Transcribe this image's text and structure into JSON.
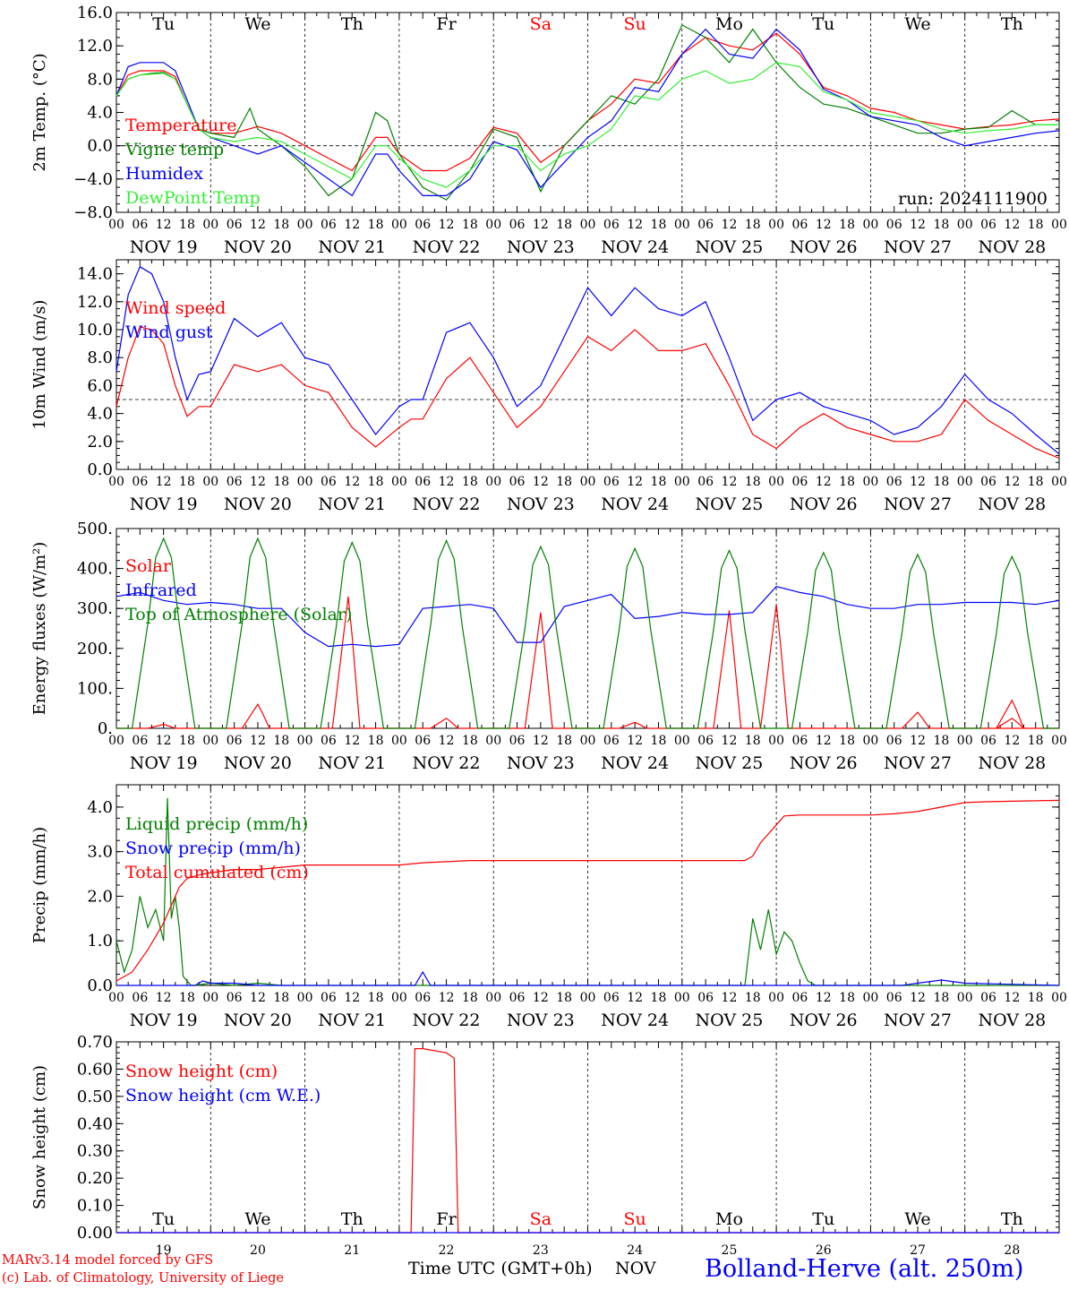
{
  "meta": {
    "run": "run: 2024111900",
    "footer_model": "MARv3.14 model forced by GFS",
    "footer_lab": "(c) Lab. of Climatology, University of Liege",
    "time_label": "Time UTC (GMT+0h)",
    "month_label": "NOV",
    "station": "Bolland-Herve (alt. 250m)"
  },
  "days": [
    "Tu",
    "We",
    "Th",
    "Fr",
    "Sa",
    "Su",
    "Mo",
    "Tu",
    "We",
    "Th"
  ],
  "weekend_days": [
    4,
    5
  ],
  "dates": [
    "NOV 19",
    "NOV 20",
    "NOV 21",
    "NOV 22",
    "NOV 23",
    "NOV 24",
    "NOV 25",
    "NOV 26",
    "NOV 27",
    "NOV 28"
  ],
  "day_numbers": [
    "19",
    "20",
    "21",
    "22",
    "23",
    "24",
    "25",
    "26",
    "27",
    "28"
  ],
  "hour_ticks": [
    "00",
    "06",
    "12",
    "18"
  ],
  "colors": {
    "red": "#ff0000",
    "green": "#008000",
    "blue": "#0000ff",
    "lightgreen": "#33ee33"
  },
  "chart_data": [
    {
      "type": "line",
      "ylabel": "2m Temp. (°C)",
      "ylim": [
        -8,
        16
      ],
      "yticks": [
        "16.0",
        "12.0",
        "8.0",
        "4.0",
        "0.0",
        "−4.0",
        "−8.0"
      ],
      "ref_line": 0,
      "x_unit": "hours since NOV 19 00 UTC",
      "series": [
        {
          "name": "Temperature",
          "color": "red",
          "x": [
            0,
            3,
            6,
            9,
            12,
            15,
            18,
            21,
            24,
            30,
            36,
            42,
            48,
            54,
            60,
            66,
            69,
            72,
            78,
            84,
            90,
            96,
            102,
            108,
            114,
            120,
            126,
            132,
            138,
            144,
            150,
            156,
            162,
            168,
            174,
            180,
            186,
            192,
            198,
            204,
            210,
            216,
            222,
            228,
            234,
            240
          ],
          "y": [
            6,
            8.5,
            9,
            9,
            9,
            8.3,
            5,
            2,
            1.5,
            1.5,
            2.3,
            1.5,
            0,
            -1.5,
            -3,
            1,
            1,
            -1,
            -3,
            -3,
            -1.5,
            2.2,
            1.5,
            -2,
            0,
            3,
            5,
            8,
            7.5,
            11,
            13,
            12,
            11.5,
            13.5,
            11,
            7,
            6,
            4.5,
            4,
            3,
            2.5,
            2,
            2.3,
            2.5,
            3,
            3.2
          ]
        },
        {
          "name": "Vigne temp",
          "color": "green",
          "x": [
            0,
            3,
            6,
            9,
            12,
            15,
            18,
            21,
            24,
            30,
            34,
            36,
            42,
            48,
            54,
            60,
            66,
            69,
            72,
            78,
            84,
            90,
            96,
            102,
            108,
            114,
            120,
            126,
            132,
            138,
            144,
            150,
            156,
            162,
            168,
            174,
            180,
            186,
            192,
            198,
            204,
            210,
            216,
            222,
            228,
            234,
            240
          ],
          "y": [
            6,
            8,
            8.5,
            8.7,
            8.8,
            8,
            5,
            2,
            1.5,
            1,
            4.5,
            2,
            0,
            -2.5,
            -6,
            -4,
            4,
            3,
            -1,
            -5,
            -6.5,
            -3,
            2,
            1,
            -5.5,
            0,
            3,
            6,
            5,
            8,
            14.5,
            13,
            10,
            14,
            10,
            7,
            5,
            4.5,
            3.5,
            2.5,
            1.5,
            1.5,
            2,
            2.2,
            4.2,
            2.5,
            2.5
          ]
        },
        {
          "name": "Humidex",
          "color": "blue",
          "x": [
            0,
            3,
            6,
            9,
            12,
            15,
            18,
            21,
            24,
            30,
            36,
            42,
            48,
            54,
            60,
            66,
            69,
            72,
            78,
            84,
            90,
            96,
            102,
            108,
            114,
            120,
            126,
            132,
            138,
            144,
            150,
            156,
            162,
            168,
            174,
            180,
            186,
            192,
            198,
            204,
            210,
            216,
            222,
            228,
            234,
            240
          ],
          "y": [
            6,
            9.5,
            10,
            10,
            10,
            9,
            5.5,
            2,
            1,
            0,
            -1,
            0,
            -2,
            -4,
            -6,
            -1,
            -1,
            -3,
            -6,
            -6,
            -4,
            0.5,
            -0.5,
            -5,
            -2,
            1,
            3,
            7,
            6.5,
            11,
            14,
            11,
            10.5,
            14,
            11.5,
            6.8,
            5.5,
            3.5,
            3,
            2.5,
            1,
            0,
            0.5,
            1,
            1.5,
            1.8
          ]
        },
        {
          "name": "DewPoint Temp",
          "color": "lightgreen",
          "x": [
            0,
            3,
            6,
            9,
            12,
            15,
            18,
            21,
            24,
            30,
            36,
            42,
            48,
            54,
            60,
            66,
            69,
            72,
            78,
            84,
            90,
            96,
            102,
            108,
            114,
            120,
            126,
            132,
            138,
            144,
            150,
            156,
            162,
            168,
            174,
            180,
            186,
            192,
            198,
            204,
            210,
            216,
            222,
            228,
            234,
            240
          ],
          "y": [
            6,
            8,
            8.5,
            8.6,
            8.7,
            8,
            5,
            2,
            1,
            0.5,
            1,
            0.5,
            -1,
            -2.5,
            -4,
            0,
            0,
            -1.5,
            -4,
            -5,
            -3,
            0,
            0,
            -3,
            -1,
            0,
            2,
            6,
            5.5,
            8,
            9,
            7.5,
            8,
            10,
            9.5,
            6.5,
            5.5,
            4,
            3.5,
            3,
            2,
            1.5,
            1.8,
            2,
            2.5,
            2.5
          ]
        }
      ]
    },
    {
      "type": "line",
      "ylabel": "10m Wind (m/s)",
      "ylim": [
        0,
        15
      ],
      "yticks": [
        "14.0",
        "12.0",
        "10.0",
        "8.0",
        "6.0",
        "4.0",
        "2.0",
        "0.0"
      ],
      "ref_line": 5,
      "x_unit": "hours since NOV 19 00 UTC",
      "series": [
        {
          "name": "Wind speed",
          "color": "red",
          "x": [
            0,
            3,
            6,
            9,
            12,
            15,
            18,
            21,
            24,
            30,
            36,
            42,
            48,
            54,
            60,
            66,
            72,
            75,
            78,
            84,
            90,
            96,
            102,
            108,
            114,
            120,
            126,
            132,
            138,
            144,
            150,
            156,
            162,
            168,
            174,
            180,
            186,
            192,
            198,
            204,
            210,
            216,
            222,
            228,
            234,
            240
          ],
          "y": [
            4.5,
            8,
            10.2,
            10,
            9,
            6,
            3.8,
            4.5,
            4.5,
            7.5,
            7,
            7.5,
            6,
            5.5,
            3,
            1.6,
            3,
            3.6,
            3.6,
            6.5,
            8,
            5.5,
            3,
            4.5,
            7,
            9.5,
            8.5,
            10,
            8.5,
            8.5,
            9,
            6,
            2.5,
            1.5,
            3,
            4,
            3,
            2.5,
            2,
            2,
            2.5,
            5,
            3.5,
            2.5,
            1.5,
            0.8
          ]
        },
        {
          "name": "Wind gust",
          "color": "blue",
          "x": [
            0,
            3,
            6,
            9,
            12,
            15,
            18,
            21,
            24,
            30,
            36,
            42,
            48,
            54,
            60,
            66,
            72,
            75,
            78,
            84,
            90,
            96,
            102,
            108,
            114,
            120,
            126,
            132,
            138,
            144,
            150,
            156,
            162,
            168,
            174,
            180,
            186,
            192,
            198,
            204,
            210,
            216,
            222,
            228,
            234,
            240
          ],
          "y": [
            7,
            12.5,
            14.5,
            14,
            12,
            8,
            5,
            6.8,
            7,
            10.8,
            9.5,
            10.5,
            8,
            7.5,
            5,
            2.5,
            4.5,
            5,
            5,
            9.8,
            10.5,
            8,
            4.5,
            6,
            9.5,
            13,
            11,
            13,
            11.5,
            11,
            12,
            8,
            3.5,
            5,
            5.5,
            4.5,
            4,
            3.5,
            2.5,
            3,
            4.5,
            6.8,
            5,
            4,
            2.5,
            1.1
          ]
        }
      ]
    },
    {
      "type": "line",
      "ylabel": "Energy fluxes (W/m²)",
      "ylim": [
        0,
        500
      ],
      "yticks": [
        "500.",
        "400.",
        "300.",
        "200.",
        "100.",
        "0."
      ],
      "x_unit": "hours since NOV 19 00 UTC",
      "series": [
        {
          "name": "Solar",
          "color": "red",
          "peaks": [
            10,
            60,
            330,
            25,
            290,
            15,
            295,
            310,
            40,
            25,
            70
          ],
          "peak_hours": [
            12,
            36,
            59,
            84,
            108,
            132,
            156,
            168,
            204,
            228,
            228
          ]
        },
        {
          "name": "Infrared",
          "color": "blue",
          "x": [
            0,
            6,
            12,
            18,
            24,
            30,
            36,
            42,
            48,
            54,
            60,
            66,
            72,
            78,
            84,
            90,
            96,
            102,
            108,
            114,
            120,
            126,
            132,
            138,
            144,
            150,
            156,
            162,
            168,
            174,
            180,
            186,
            192,
            198,
            204,
            210,
            216,
            222,
            228,
            234,
            240
          ],
          "y": [
            330,
            340,
            320,
            310,
            315,
            310,
            300,
            300,
            240,
            205,
            210,
            205,
            210,
            300,
            305,
            310,
            300,
            215,
            215,
            305,
            320,
            335,
            275,
            280,
            290,
            285,
            285,
            290,
            355,
            340,
            330,
            310,
            300,
            300,
            310,
            310,
            315,
            315,
            315,
            310,
            320
          ]
        },
        {
          "name": "Top of Atmosphere (Solar)",
          "color": "green",
          "peaks": [
            475,
            475,
            465,
            470,
            455,
            450,
            445,
            440,
            435,
            430
          ],
          "peak_hours": [
            12,
            36,
            60,
            84,
            108,
            132,
            156,
            180,
            204,
            228
          ]
        }
      ]
    },
    {
      "type": "line",
      "ylabel": "Precip (mm/h)",
      "ylim": [
        0,
        4.5
      ],
      "yticks": [
        "4.0",
        "3.0",
        "2.0",
        "1.0",
        "0.0"
      ],
      "x_unit": "hours since NOV 19 00 UTC",
      "series": [
        {
          "name": "Liquid precip (mm/h)",
          "color": "green",
          "x": [
            0,
            2,
            4,
            6,
            8,
            10,
            12,
            13,
            14,
            15,
            16,
            17,
            18,
            19,
            20,
            24,
            30,
            36,
            42,
            48,
            160,
            162,
            164,
            166,
            168,
            170,
            172,
            174,
            176,
            178,
            180,
            240
          ],
          "y": [
            1,
            0.3,
            0.8,
            2,
            1.3,
            1.7,
            1,
            4.2,
            1.5,
            2,
            1.3,
            0.2,
            0.1,
            0,
            0,
            0.05,
            0,
            0.05,
            0,
            0,
            0,
            1.5,
            0.8,
            1.7,
            0.7,
            1.2,
            1,
            0.5,
            0.1,
            0,
            0,
            0
          ]
        },
        {
          "name": "Snow precip (mm/h)",
          "color": "blue",
          "x": [
            0,
            20,
            22,
            24,
            30,
            36,
            70,
            76,
            78,
            80,
            84,
            96,
            120,
            200,
            204,
            210,
            216,
            240
          ],
          "y": [
            0,
            0,
            0.1,
            0.05,
            0.05,
            0,
            0,
            0,
            0.3,
            0,
            0,
            0,
            0,
            0,
            0.05,
            0.12,
            0.05,
            0
          ]
        },
        {
          "name": "Total cumulated (cm)",
          "color": "red",
          "x": [
            0,
            4,
            8,
            12,
            16,
            18,
            22,
            30,
            36,
            48,
            60,
            66,
            72,
            78,
            90,
            96,
            120,
            144,
            160,
            162,
            164,
            168,
            170,
            174,
            180,
            186,
            192,
            198,
            204,
            210,
            216,
            222,
            228,
            234,
            240
          ],
          "y": [
            0.1,
            0.3,
            0.8,
            1.4,
            2.2,
            2.4,
            2.5,
            2.6,
            2.6,
            2.7,
            2.7,
            2.7,
            2.7,
            2.75,
            2.8,
            2.8,
            2.8,
            2.8,
            2.8,
            2.9,
            3.2,
            3.6,
            3.8,
            3.82,
            3.82,
            3.82,
            3.82,
            3.85,
            3.9,
            4,
            4.1,
            4.12,
            4.13,
            4.14,
            4.15
          ]
        }
      ]
    },
    {
      "type": "line",
      "ylabel": "Snow height (cm)",
      "ylim": [
        0,
        0.7
      ],
      "yticks": [
        "0.70",
        "0.60",
        "0.50",
        "0.40",
        "0.30",
        "0.20",
        "0.10",
        "0.00"
      ],
      "x_unit": "hours since NOV 19 00 UTC",
      "series": [
        {
          "name": "Snow height (cm)",
          "color": "red",
          "x": [
            0,
            75,
            76,
            78,
            84,
            86,
            87,
            240
          ],
          "y": [
            0,
            0,
            0.675,
            0.675,
            0.66,
            0.64,
            0,
            0
          ]
        },
        {
          "name": "Snow height (cm W.E.)",
          "color": "blue",
          "x": [
            0,
            240
          ],
          "y": [
            0,
            0
          ]
        }
      ]
    }
  ]
}
